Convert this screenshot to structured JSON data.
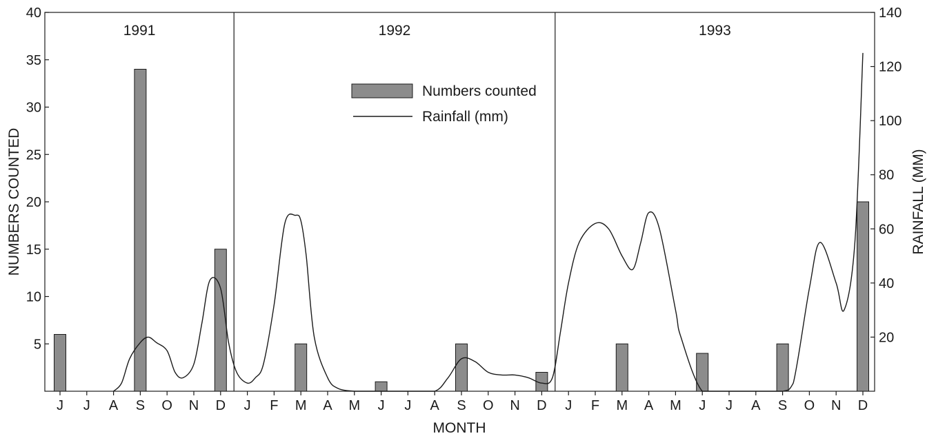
{
  "chart_data": {
    "type": "bar",
    "xlabel": "MONTH",
    "ylabel_left": "NUMBERS COUNTED",
    "ylabel_right": "RAINFALL (MM)",
    "ylim_left": [
      0,
      40
    ],
    "ylim_right": [
      0,
      140
    ],
    "yticks_left": [
      5,
      10,
      15,
      20,
      25,
      30,
      35,
      40
    ],
    "yticks_right": [
      20,
      40,
      60,
      80,
      100,
      120,
      140
    ],
    "grid": false,
    "legend_position": "top-center",
    "years": [
      {
        "label": "1991",
        "start_index": 0,
        "end_index": 6
      },
      {
        "label": "1992",
        "start_index": 7,
        "end_index": 18
      },
      {
        "label": "1993",
        "start_index": 19,
        "end_index": 30
      }
    ],
    "categories": [
      "J",
      "J",
      "A",
      "S",
      "O",
      "N",
      "D",
      "J",
      "F",
      "M",
      "A",
      "M",
      "J",
      "J",
      "A",
      "S",
      "O",
      "N",
      "D",
      "J",
      "F",
      "M",
      "A",
      "M",
      "J",
      "J",
      "A",
      "S",
      "O",
      "N",
      "D"
    ],
    "series": [
      {
        "name": "Numbers counted",
        "type": "bar",
        "axis": "left",
        "color": "#8c8c8c",
        "values": [
          6,
          0,
          0,
          34,
          0,
          0,
          15,
          0,
          0,
          5,
          0,
          0,
          1,
          0,
          0,
          5,
          0,
          0,
          2,
          0,
          0,
          5,
          0,
          0,
          4,
          0,
          0,
          5,
          0,
          0,
          20
        ]
      },
      {
        "name": "Rainfall (mm)",
        "type": "line",
        "axis": "right",
        "color": "#1a1a1a",
        "x": [
          2.0,
          2.3,
          2.6,
          3.0,
          3.3,
          3.6,
          4.0,
          4.3,
          4.6,
          5.0,
          5.3,
          5.6,
          6.0,
          6.3,
          6.6,
          7.0,
          7.3,
          7.6,
          8.0,
          8.4,
          8.8,
          9.0,
          9.2,
          9.5,
          10.0,
          10.4,
          11.0,
          11.5,
          12.0,
          13.0,
          14.0,
          14.5,
          15.0,
          15.5,
          16.0,
          16.5,
          17.0,
          17.5,
          18.0,
          18.4,
          18.7,
          19.0,
          19.4,
          20.0,
          20.5,
          21.0,
          21.4,
          21.7,
          22.0,
          22.4,
          23.0,
          23.2,
          24.0,
          25.0,
          26.0,
          27.0,
          27.4,
          28.0,
          28.4,
          29.0,
          29.3,
          29.7,
          30.0
        ],
        "values": [
          0,
          3,
          12,
          18,
          20,
          18,
          15,
          7,
          5,
          10,
          25,
          41,
          38,
          18,
          7,
          3,
          5,
          10,
          32,
          62,
          65,
          63,
          50,
          20,
          5,
          1,
          0,
          0,
          0,
          0,
          0,
          5,
          12,
          11,
          7,
          6,
          6,
          5,
          3,
          5,
          22,
          40,
          55,
          62,
          60,
          50,
          45,
          55,
          66,
          60,
          30,
          20,
          0,
          0,
          0,
          0,
          3,
          38,
          55,
          40,
          30,
          55,
          125
        ]
      }
    ]
  }
}
